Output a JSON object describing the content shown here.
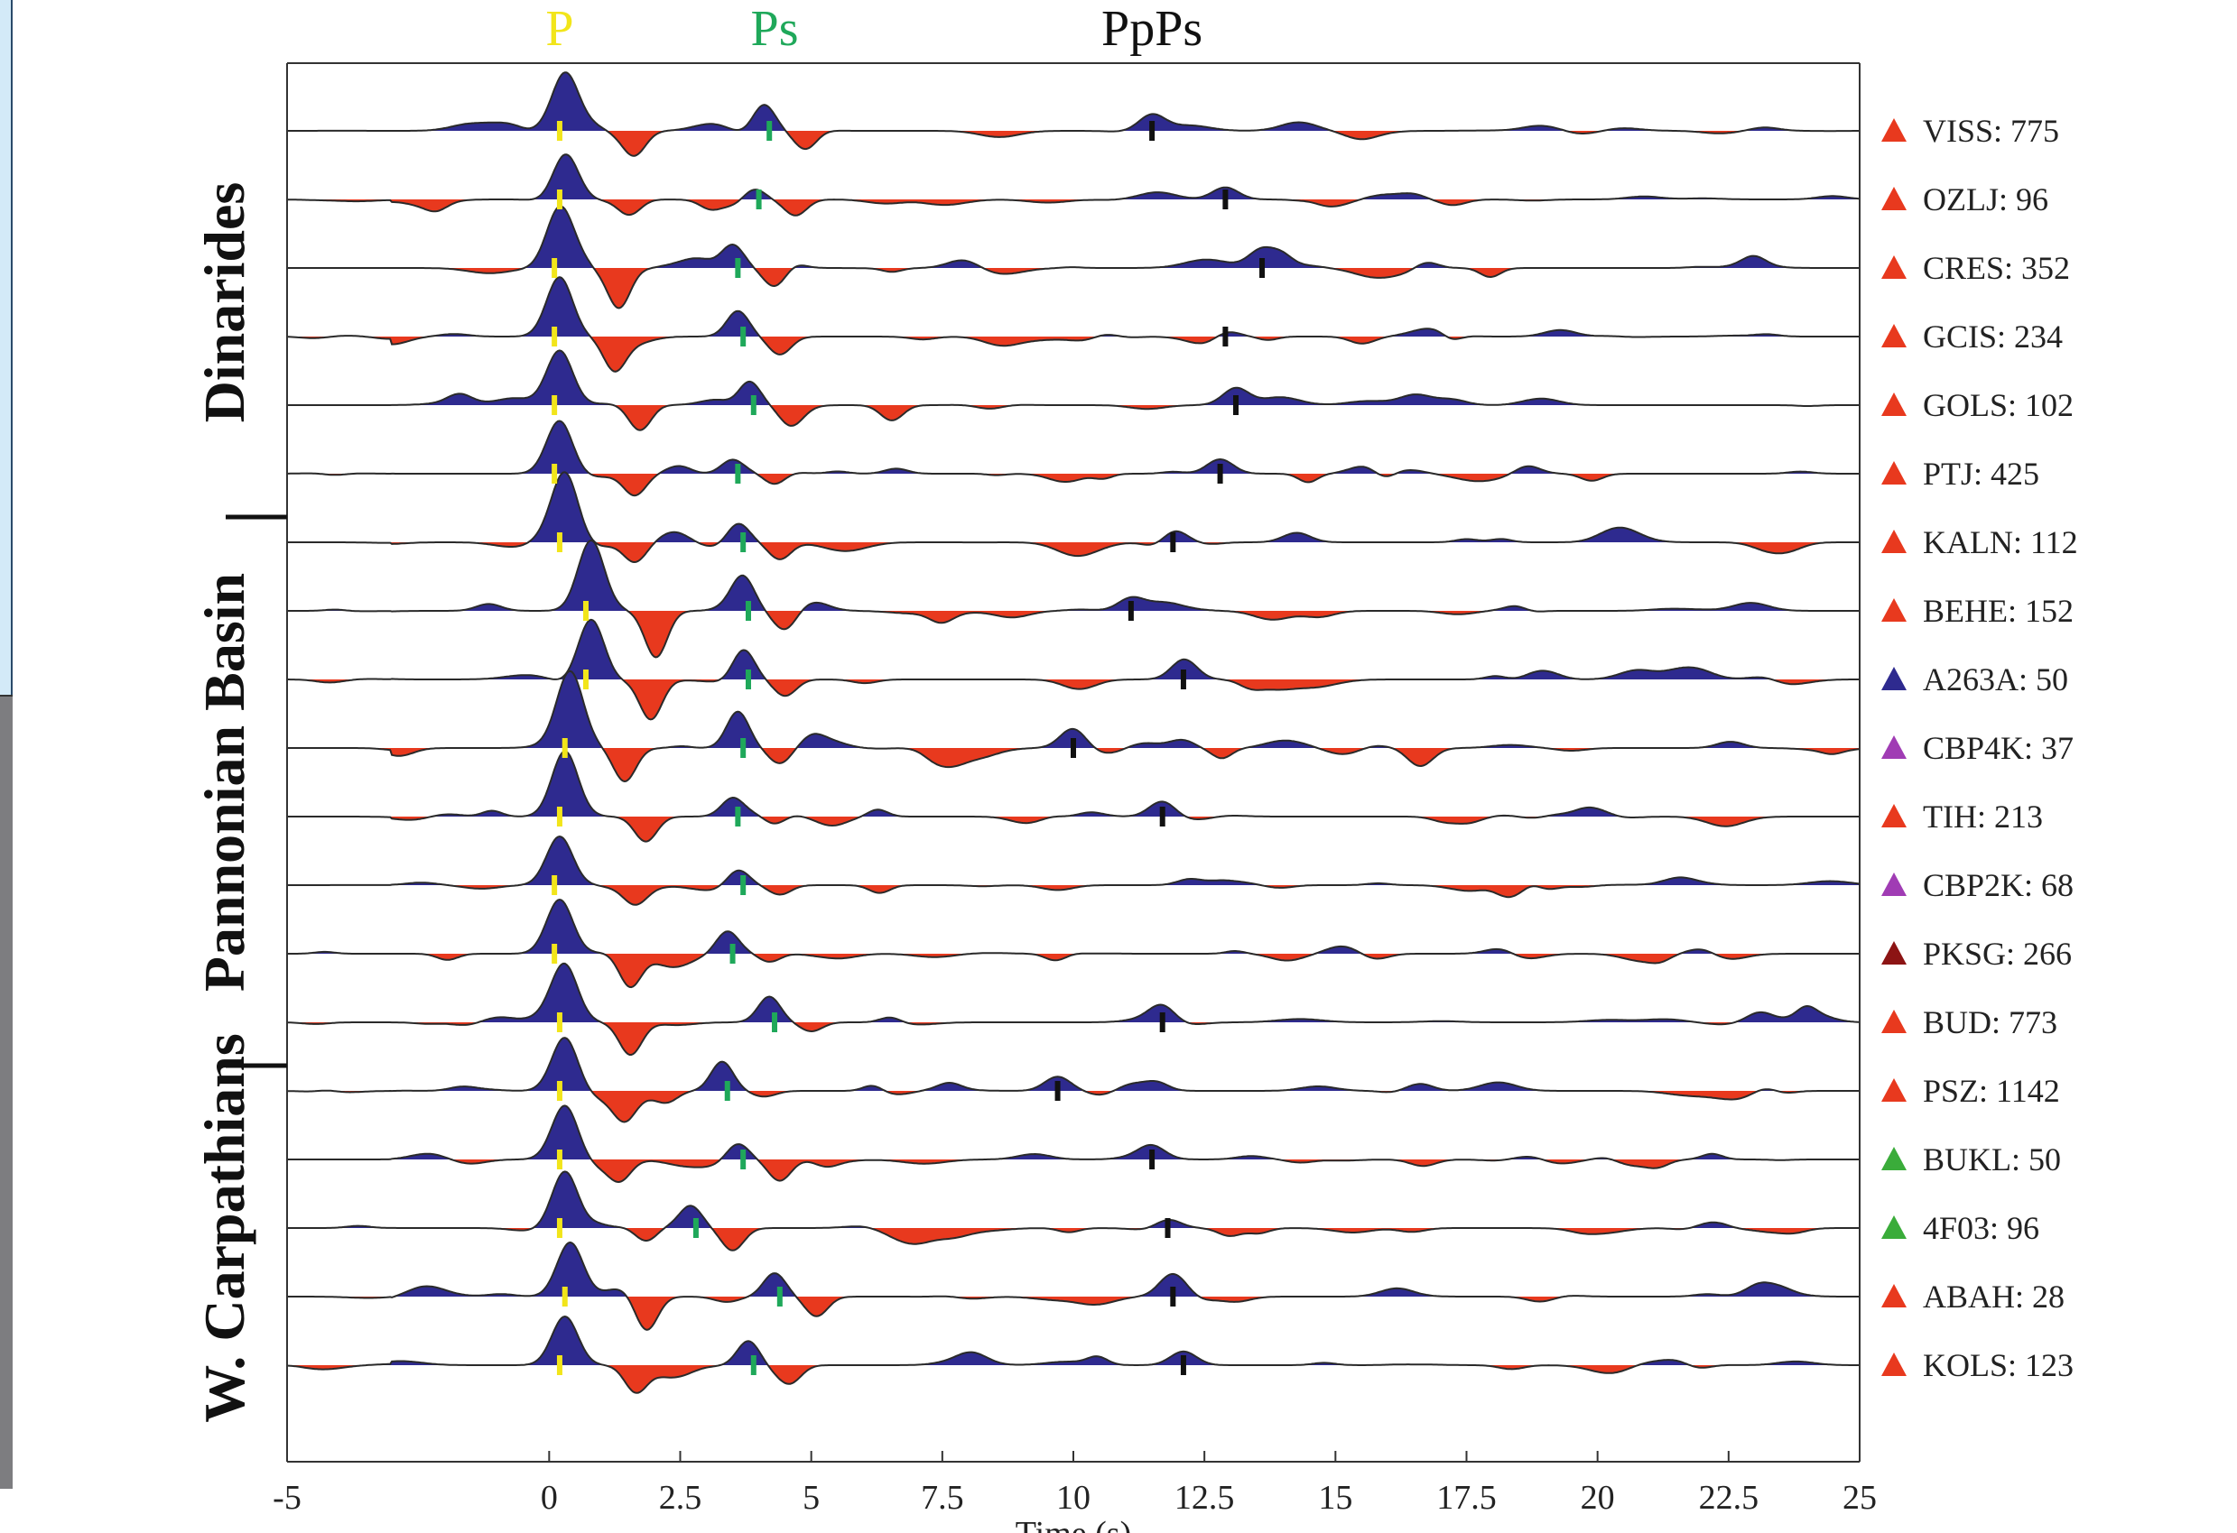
{
  "chart_data": {
    "type": "line",
    "description_kind": "receiver function traces",
    "phase_labels": [
      {
        "text": "P",
        "time": 0.2,
        "color": "#f2e51a"
      },
      {
        "text": "Ps",
        "time": 4.3,
        "color": "#1fa85a"
      },
      {
        "text": "PpPs",
        "time": 11.5,
        "color": "#111111"
      }
    ],
    "xlabel": "Time (s)",
    "xlim": [
      -5,
      25
    ],
    "xticks": [
      {
        "value": -5,
        "label": "-5"
      },
      {
        "value": 0,
        "label": "0"
      },
      {
        "value": 2.5,
        "label": "2.5"
      },
      {
        "value": 5,
        "label": "5"
      },
      {
        "value": 7.5,
        "label": "7.5"
      },
      {
        "value": 10,
        "label": "10"
      },
      {
        "value": 12.5,
        "label": "12.5"
      },
      {
        "value": 15,
        "label": "15"
      },
      {
        "value": 17.5,
        "label": "17.5"
      },
      {
        "value": 20,
        "label": "20"
      },
      {
        "value": 22.5,
        "label": "22.5"
      },
      {
        "value": 25,
        "label": "25"
      }
    ],
    "regions": [
      {
        "name": "Dinarides",
        "from_trace": 0,
        "to_trace": 5
      },
      {
        "name": "Pannonian Basin",
        "from_trace": 6,
        "to_trace": 13
      },
      {
        "name": "W. Carpathians",
        "from_trace": 14,
        "to_trace": 18
      }
    ],
    "colors": {
      "positive": "#2e2a8f",
      "negative": "#e8391e",
      "p_marker": "#f2e51a",
      "ps_marker": "#1fa85a",
      "ppps_marker": "#111111"
    },
    "traces": [
      {
        "station": "VISS: 775",
        "triangle": "#e8391e",
        "p": 0.2,
        "ps": 4.2,
        "ppps": 11.5,
        "seed": 1,
        "amp": 1.0
      },
      {
        "station": "OZLJ: 96",
        "triangle": "#e8391e",
        "p": 0.2,
        "ps": 4.0,
        "ppps": 12.9,
        "seed": 2,
        "amp": 0.9
      },
      {
        "station": "CRES: 352",
        "triangle": "#e8391e",
        "p": 0.1,
        "ps": 3.6,
        "ppps": 13.6,
        "seed": 3,
        "amp": 1.1
      },
      {
        "station": "GCIS: 234",
        "triangle": "#e8391e",
        "p": 0.1,
        "ps": 3.7,
        "ppps": 12.9,
        "seed": 4,
        "amp": 1.1
      },
      {
        "station": "GOLS: 102",
        "triangle": "#e8391e",
        "p": 0.1,
        "ps": 3.9,
        "ppps": 13.1,
        "seed": 5,
        "amp": 1.0
      },
      {
        "station": "PTJ: 425",
        "triangle": "#e8391e",
        "p": 0.1,
        "ps": 3.6,
        "ppps": 12.8,
        "seed": 6,
        "amp": 1.0
      },
      {
        "station": "KALN: 112",
        "triangle": "#e8391e",
        "p": 0.2,
        "ps": 3.7,
        "ppps": 11.9,
        "seed": 7,
        "amp": 1.2
      },
      {
        "station": "BEHE: 152",
        "triangle": "#e8391e",
        "p": 0.7,
        "ps": 3.8,
        "ppps": 11.1,
        "seed": 8,
        "amp": 1.3
      },
      {
        "station": "A263A: 50",
        "triangle": "#2e2a8f",
        "p": 0.7,
        "ps": 3.8,
        "ppps": 12.1,
        "seed": 9,
        "amp": 1.3
      },
      {
        "station": "CBP4K: 37",
        "triangle": "#a03cb4",
        "p": 0.3,
        "ps": 3.7,
        "ppps": 10.0,
        "seed": 10,
        "amp": 1.3
      },
      {
        "station": "TIH: 213",
        "triangle": "#e8391e",
        "p": 0.2,
        "ps": 3.6,
        "ppps": 11.7,
        "seed": 11,
        "amp": 1.2
      },
      {
        "station": "CBP2K: 68",
        "triangle": "#a03cb4",
        "p": 0.1,
        "ps": 3.7,
        "ppps": null,
        "seed": 12,
        "amp": 0.9
      },
      {
        "station": "PKSG: 266",
        "triangle": "#8c1414",
        "p": 0.1,
        "ps": 3.5,
        "ppps": null,
        "seed": 13,
        "amp": 1.0
      },
      {
        "station": "BUD: 773",
        "triangle": "#e8391e",
        "p": 0.2,
        "ps": 4.3,
        "ppps": 11.7,
        "seed": 14,
        "amp": 1.0
      },
      {
        "station": "PSZ: 1142",
        "triangle": "#e8391e",
        "p": 0.2,
        "ps": 3.4,
        "ppps": 9.7,
        "seed": 15,
        "amp": 1.0
      },
      {
        "station": "BUKL: 50",
        "triangle": "#3aac3a",
        "p": 0.2,
        "ps": 3.7,
        "ppps": 11.5,
        "seed": 16,
        "amp": 1.0
      },
      {
        "station": "4F03: 96",
        "triangle": "#3aac3a",
        "p": 0.2,
        "ps": 2.8,
        "ppps": 11.8,
        "seed": 17,
        "amp": 1.1
      },
      {
        "station": "ABAH: 28",
        "triangle": "#e8391e",
        "p": 0.3,
        "ps": 4.4,
        "ppps": 11.9,
        "seed": 18,
        "amp": 1.0
      },
      {
        "station": "KOLS: 123",
        "triangle": "#e8391e",
        "p": 0.2,
        "ps": 3.9,
        "ppps": 12.1,
        "seed": 19,
        "amp": 0.9
      }
    ]
  }
}
